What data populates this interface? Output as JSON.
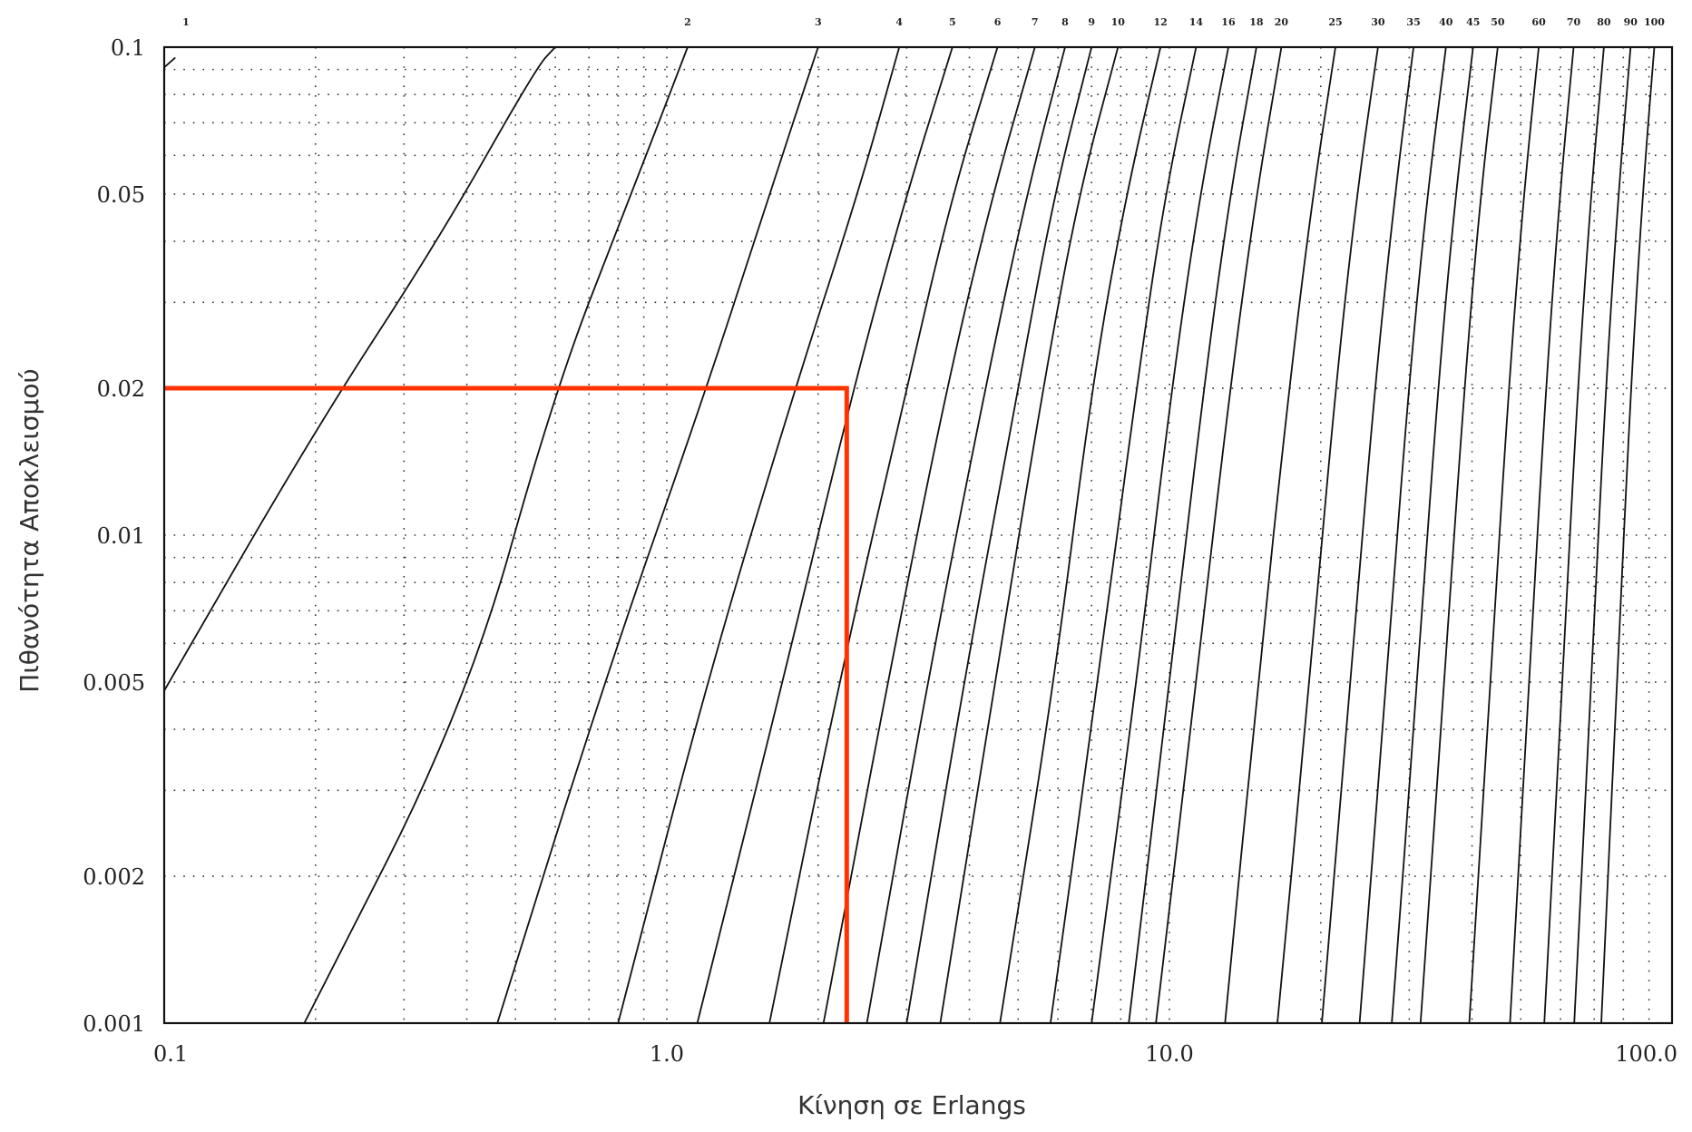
{
  "chart_data": {
    "type": "line",
    "title": "",
    "xlabel": "Κίνηση σε Erlangs",
    "ylabel": "Πιθανότητα Αποκλεισμού",
    "xscale": "log",
    "yscale": "log",
    "xlim": [
      0.1,
      100.0
    ],
    "ylim": [
      0.001,
      0.1
    ],
    "grid": true,
    "x_tick_labels": [
      {
        "value": 0.1,
        "label": "0.1"
      },
      {
        "value": 1.0,
        "label": "1.0"
      },
      {
        "value": 10.0,
        "label": "10.0"
      },
      {
        "value": 100.0,
        "label": "100.0"
      }
    ],
    "y_tick_labels": [
      {
        "value": 0.1,
        "label": "0.1"
      },
      {
        "value": 0.05,
        "label": "0.05"
      },
      {
        "value": 0.02,
        "label": "0.02"
      },
      {
        "value": 0.01,
        "label": "0.01"
      },
      {
        "value": 0.005,
        "label": "0.005"
      },
      {
        "value": 0.002,
        "label": "0.002"
      },
      {
        "value": 0.001,
        "label": "0.001"
      }
    ],
    "curve_labels": [
      "1",
      "2",
      "3",
      "4",
      "5",
      "6",
      "7",
      "8",
      "9",
      "10",
      "12",
      "14",
      "16",
      "18",
      "20",
      "25",
      "30",
      "35",
      "40",
      "45",
      "50",
      "60",
      "70",
      "80",
      "90",
      "100"
    ],
    "series_note": "Erlang B curves, one per number of channels N",
    "series": [
      {
        "label": "1",
        "points": [
          [
            0.1,
            0.0909
          ],
          [
            0.105,
            0.095
          ]
        ]
      },
      {
        "label": "1",
        "points": [
          [
            0.1,
            0.0048
          ],
          [
            0.2,
            0.0165
          ],
          [
            0.35,
            0.04
          ],
          [
            0.55,
            0.0909
          ],
          [
            0.6,
            0.1
          ]
        ]
      },
      {
        "label": "2",
        "points": [
          [
            0.19,
            0.001
          ],
          [
            0.4,
            0.0045
          ],
          [
            0.6,
            0.02
          ],
          [
            0.85,
            0.05
          ],
          [
            1.1,
            0.1
          ]
        ]
      },
      {
        "label": "3",
        "points": [
          [
            0.46,
            0.001
          ],
          [
            0.75,
            0.005
          ],
          [
            1.2,
            0.02
          ],
          [
            1.6,
            0.05
          ],
          [
            2.0,
            0.1
          ]
        ]
      },
      {
        "label": "4",
        "points": [
          [
            0.8,
            0.001
          ],
          [
            1.2,
            0.005
          ],
          [
            1.8,
            0.02
          ],
          [
            2.4,
            0.05
          ],
          [
            2.9,
            0.1
          ]
        ]
      },
      {
        "label": "5",
        "points": [
          [
            1.15,
            0.001
          ],
          [
            1.7,
            0.005
          ],
          [
            2.35,
            0.02
          ],
          [
            3.0,
            0.05
          ],
          [
            3.7,
            0.1
          ]
        ]
      },
      {
        "label": "6",
        "points": [
          [
            1.6,
            0.001
          ],
          [
            2.2,
            0.005
          ],
          [
            3.0,
            0.02
          ],
          [
            3.7,
            0.05
          ],
          [
            4.55,
            0.1
          ]
        ]
      },
      {
        "label": "7",
        "points": [
          [
            2.05,
            0.001
          ],
          [
            2.75,
            0.005
          ],
          [
            3.6,
            0.02
          ],
          [
            4.45,
            0.05
          ],
          [
            5.4,
            0.1
          ]
        ]
      },
      {
        "label": "8",
        "points": [
          [
            2.5,
            0.001
          ],
          [
            3.3,
            0.005
          ],
          [
            4.3,
            0.02
          ],
          [
            5.2,
            0.05
          ],
          [
            6.2,
            0.1
          ]
        ]
      },
      {
        "label": "9",
        "points": [
          [
            3.0,
            0.001
          ],
          [
            3.9,
            0.005
          ],
          [
            5.0,
            0.02
          ],
          [
            5.9,
            0.05
          ],
          [
            7.0,
            0.1
          ]
        ]
      },
      {
        "label": "10",
        "points": [
          [
            3.5,
            0.001
          ],
          [
            4.5,
            0.005
          ],
          [
            5.6,
            0.02
          ],
          [
            6.6,
            0.05
          ],
          [
            7.9,
            0.1
          ]
        ]
      },
      {
        "label": "12",
        "points": [
          [
            4.6,
            0.001
          ],
          [
            5.9,
            0.005
          ],
          [
            7.0,
            0.02
          ],
          [
            8.2,
            0.05
          ],
          [
            9.6,
            0.1
          ]
        ]
      },
      {
        "label": "14",
        "points": [
          [
            5.8,
            0.001
          ],
          [
            7.2,
            0.005
          ],
          [
            8.6,
            0.02
          ],
          [
            9.8,
            0.05
          ],
          [
            11.3,
            0.1
          ]
        ]
      },
      {
        "label": "16",
        "points": [
          [
            7.0,
            0.001
          ],
          [
            8.6,
            0.005
          ],
          [
            10.1,
            0.02
          ],
          [
            11.5,
            0.05
          ],
          [
            13.1,
            0.1
          ]
        ]
      },
      {
        "label": "18",
        "points": [
          [
            8.3,
            0.001
          ],
          [
            10.0,
            0.005
          ],
          [
            11.7,
            0.02
          ],
          [
            13.2,
            0.05
          ],
          [
            14.9,
            0.1
          ]
        ]
      },
      {
        "label": "20",
        "points": [
          [
            9.4,
            0.001
          ],
          [
            11.3,
            0.005
          ],
          [
            13.2,
            0.02
          ],
          [
            14.9,
            0.05
          ],
          [
            16.7,
            0.1
          ]
        ]
      },
      {
        "label": "25",
        "points": [
          [
            12.9,
            0.001
          ],
          [
            15.0,
            0.005
          ],
          [
            17.3,
            0.02
          ],
          [
            19.3,
            0.05
          ],
          [
            21.4,
            0.1
          ]
        ]
      },
      {
        "label": "30",
        "points": [
          [
            16.4,
            0.001
          ],
          [
            19.0,
            0.005
          ],
          [
            21.4,
            0.02
          ],
          [
            23.6,
            0.05
          ],
          [
            26.0,
            0.1
          ]
        ]
      },
      {
        "label": "35",
        "points": [
          [
            20.1,
            0.001
          ],
          [
            22.9,
            0.005
          ],
          [
            25.6,
            0.02
          ],
          [
            28.1,
            0.05
          ],
          [
            30.6,
            0.1
          ]
        ]
      },
      {
        "label": "40",
        "points": [
          [
            23.9,
            0.001
          ],
          [
            27.0,
            0.005
          ],
          [
            29.9,
            0.02
          ],
          [
            32.6,
            0.05
          ],
          [
            35.5,
            0.1
          ]
        ]
      },
      {
        "label": "45",
        "points": [
          [
            27.7,
            0.001
          ],
          [
            31.1,
            0.005
          ],
          [
            34.2,
            0.02
          ],
          [
            37.1,
            0.05
          ],
          [
            40.2,
            0.1
          ]
        ]
      },
      {
        "label": "50",
        "points": [
          [
            31.6,
            0.001
          ],
          [
            35.2,
            0.005
          ],
          [
            38.6,
            0.02
          ],
          [
            41.6,
            0.05
          ],
          [
            45.0,
            0.1
          ]
        ]
      },
      {
        "label": "60",
        "points": [
          [
            39.5,
            0.001
          ],
          [
            43.5,
            0.005
          ],
          [
            47.3,
            0.02
          ],
          [
            50.7,
            0.05
          ],
          [
            54.3,
            0.1
          ]
        ]
      },
      {
        "label": "70",
        "points": [
          [
            47.6,
            0.001
          ],
          [
            51.9,
            0.005
          ],
          [
            56.1,
            0.02
          ],
          [
            59.8,
            0.05
          ],
          [
            63.7,
            0.1
          ]
        ]
      },
      {
        "label": "80",
        "points": [
          [
            55.7,
            0.001
          ],
          [
            60.5,
            0.005
          ],
          [
            64.9,
            0.02
          ],
          [
            69.0,
            0.05
          ],
          [
            73.2,
            0.1
          ]
        ]
      },
      {
        "label": "90",
        "points": [
          [
            63.9,
            0.001
          ],
          [
            69.0,
            0.005
          ],
          [
            73.8,
            0.02
          ],
          [
            78.2,
            0.05
          ],
          [
            82.7,
            0.1
          ]
        ]
      },
      {
        "label": "100",
        "points": [
          [
            72.3,
            0.001
          ],
          [
            77.7,
            0.005
          ],
          [
            82.8,
            0.02
          ],
          [
            87.4,
            0.05
          ],
          [
            92.2,
            0.1
          ]
        ]
      }
    ],
    "annotation": {
      "type": "guide-lines",
      "color": "#ff3300",
      "y_value": 0.02,
      "x_value": 2.28,
      "description_points": [
        [
          0.1,
          0.02
        ],
        [
          2.28,
          0.02
        ],
        [
          2.28,
          0.001
        ]
      ]
    }
  }
}
